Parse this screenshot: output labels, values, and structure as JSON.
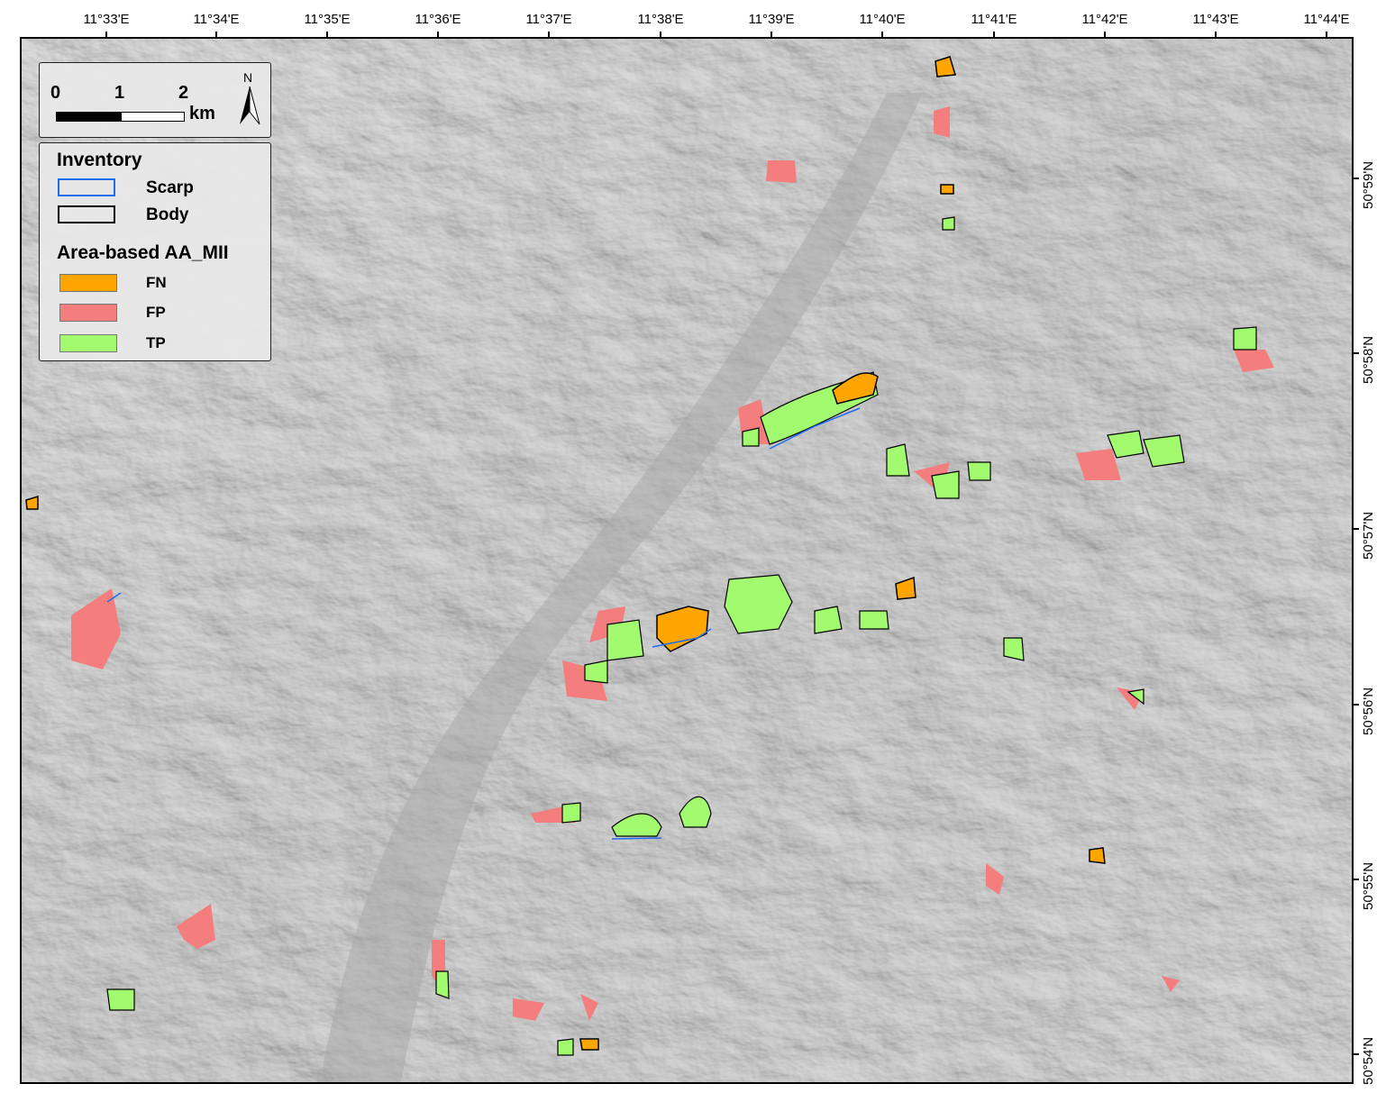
{
  "longitude_ticks": [
    "11°33'E",
    "11°34'E",
    "11°35'E",
    "11°36'E",
    "11°37'E",
    "11°38'E",
    "11°39'E",
    "11°40'E",
    "11°41'E",
    "11°42'E",
    "11°43'E",
    "11°44'E"
  ],
  "latitude_ticks": [
    "50°59'N",
    "50°58'N",
    "50°57'N",
    "50°56'N",
    "50°55'N",
    "50°54'N"
  ],
  "scalebar": {
    "labels": [
      "0",
      "1",
      "2"
    ],
    "unit": "km",
    "north": "N"
  },
  "legend": {
    "inventory_title": "Inventory",
    "inventory": [
      {
        "label": "Scarp",
        "color": "#1e6cf0"
      },
      {
        "label": "Body",
        "color": "#000000"
      }
    ],
    "accuracy_title": "Area-based AA_MII",
    "accuracy": [
      {
        "label": "FN",
        "color": "#ffa500"
      },
      {
        "label": "FP",
        "color": "#f47d7d"
      },
      {
        "label": "TP",
        "color": "#a2fa6e"
      }
    ]
  },
  "basemap": "hillshade"
}
